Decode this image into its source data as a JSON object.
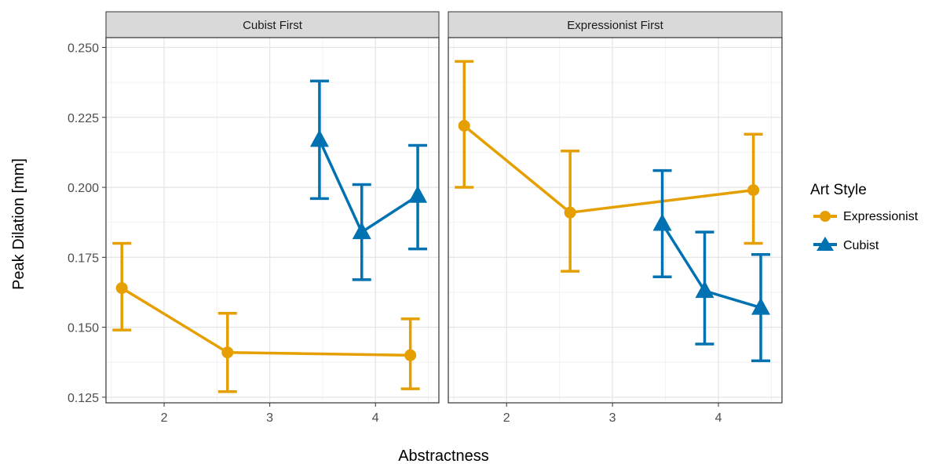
{
  "chart_data": {
    "type": "line",
    "xlabel": "Abstractness",
    "ylabel": "Peak Dilation [mm]",
    "xlim": [
      1.45,
      4.6
    ],
    "ylim": [
      0.123,
      0.2535
    ],
    "x_ticks": [
      2,
      3,
      4
    ],
    "y_ticks": [
      0.125,
      0.15,
      0.175,
      0.2,
      0.225,
      0.25
    ],
    "y_tick_labels": [
      "0.125",
      "0.150",
      "0.175",
      "0.200",
      "0.225",
      "0.250"
    ],
    "grid": true,
    "legend": {
      "title": "Art Style",
      "position": "right",
      "items": [
        {
          "name": "Expressionist",
          "color": "#E69F00",
          "marker": "circle"
        },
        {
          "name": "Cubist",
          "color": "#0072B2",
          "marker": "triangle"
        }
      ]
    },
    "panels": [
      {
        "title": "Cubist First",
        "series": [
          {
            "name": "Expressionist",
            "points": [
              {
                "x": 1.6,
                "y": 0.164,
                "ymin": 0.149,
                "ymax": 0.18
              },
              {
                "x": 2.6,
                "y": 0.141,
                "ymin": 0.127,
                "ymax": 0.155
              },
              {
                "x": 4.33,
                "y": 0.14,
                "ymin": 0.128,
                "ymax": 0.153
              }
            ]
          },
          {
            "name": "Cubist",
            "points": [
              {
                "x": 3.47,
                "y": 0.217,
                "ymin": 0.196,
                "ymax": 0.238
              },
              {
                "x": 3.87,
                "y": 0.184,
                "ymin": 0.167,
                "ymax": 0.201
              },
              {
                "x": 4.4,
                "y": 0.197,
                "ymin": 0.178,
                "ymax": 0.215
              }
            ]
          }
        ]
      },
      {
        "title": "Expressionist First",
        "series": [
          {
            "name": "Expressionist",
            "points": [
              {
                "x": 1.6,
                "y": 0.222,
                "ymin": 0.2,
                "ymax": 0.245
              },
              {
                "x": 2.6,
                "y": 0.191,
                "ymin": 0.17,
                "ymax": 0.213
              },
              {
                "x": 4.33,
                "y": 0.199,
                "ymin": 0.18,
                "ymax": 0.219
              }
            ]
          },
          {
            "name": "Cubist",
            "points": [
              {
                "x": 3.47,
                "y": 0.187,
                "ymin": 0.168,
                "ymax": 0.206
              },
              {
                "x": 3.87,
                "y": 0.163,
                "ymin": 0.144,
                "ymax": 0.184
              },
              {
                "x": 4.4,
                "y": 0.157,
                "ymin": 0.138,
                "ymax": 0.176
              }
            ]
          }
        ]
      }
    ]
  }
}
